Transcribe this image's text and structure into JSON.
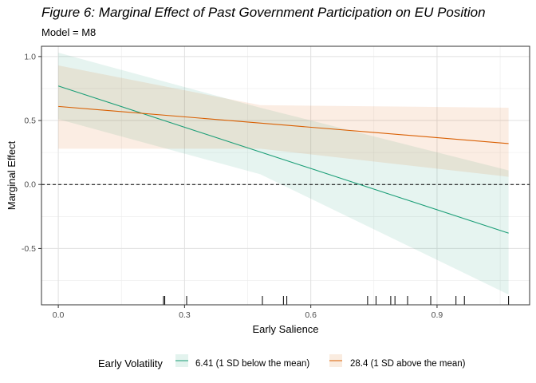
{
  "chart_data": {
    "type": "line",
    "title": "Figure 6: Marginal Effect of Past Government Participation on EU Position",
    "subtitle": "Model = M8",
    "xlabel": "Early Salience",
    "ylabel": "Marginal Effect",
    "xlim": [
      -0.04,
      1.12
    ],
    "ylim": [
      -0.94,
      1.08
    ],
    "x_ticks": [
      0.0,
      0.3,
      0.6,
      0.9
    ],
    "x_tick_labels": [
      "0.0",
      "0.3",
      "0.6",
      "0.9"
    ],
    "y_ticks": [
      -0.5,
      0.0,
      0.5,
      1.0
    ],
    "y_tick_labels": [
      "-0.5",
      "0.0",
      "0.5",
      "1.0"
    ],
    "grid": true,
    "reference_line": {
      "y": 0,
      "style": "dashed"
    },
    "legend": {
      "title": "Early Volatility",
      "position": "bottom"
    },
    "series": [
      {
        "name": "6.41 (1 SD below the mean)",
        "color": "#1b9e77",
        "x": [
          0.0,
          1.07
        ],
        "y": [
          0.77,
          -0.38
        ],
        "ci_lower": [
          0.51,
          0.08,
          -0.86
        ],
        "ci_upper": [
          1.03,
          0.6,
          0.11
        ],
        "ci_x": [
          0.0,
          0.48,
          1.07
        ]
      },
      {
        "name": "28.4 (1 SD above the mean)",
        "color": "#d95f02",
        "x": [
          0.0,
          1.07
        ],
        "y": [
          0.61,
          0.32
        ],
        "ci_lower": [
          0.28,
          0.28,
          0.06
        ],
        "ci_upper": [
          0.93,
          0.62,
          0.6
        ],
        "ci_x": [
          0.0,
          0.48,
          1.07
        ]
      }
    ],
    "rug_x": [
      0.25,
      0.253,
      0.305,
      0.485,
      0.535,
      0.543,
      0.735,
      0.755,
      0.79,
      0.8,
      0.83,
      0.885,
      0.945,
      0.965,
      1.07
    ]
  }
}
